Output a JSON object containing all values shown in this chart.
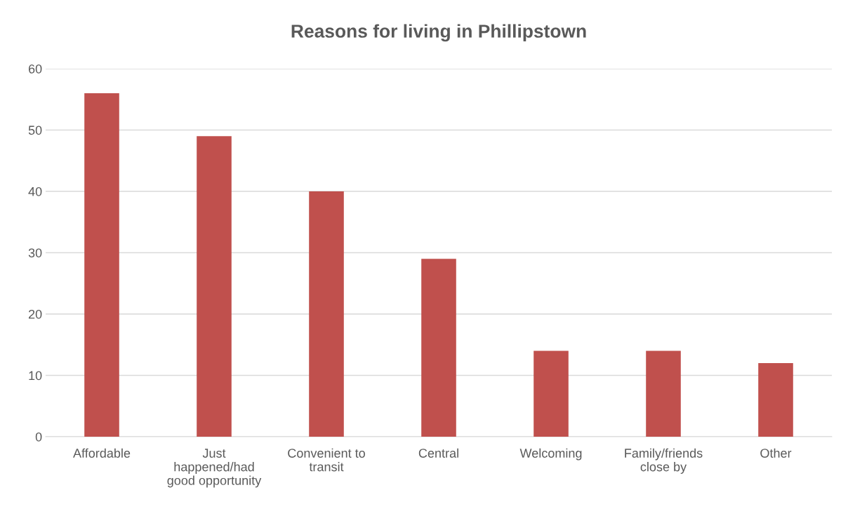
{
  "chart_data": {
    "type": "bar",
    "title": "Reasons for living in Phillipstown",
    "categories": [
      "Affordable",
      "Just\nhappened/had\ngood opportunity",
      "Convenient to\ntransit",
      "Central",
      "Welcoming",
      "Family/friends\nclose by",
      "Other"
    ],
    "values": [
      56,
      49,
      40,
      29,
      14,
      14,
      12
    ],
    "color": "#c0504d",
    "ylim": [
      0,
      60
    ],
    "yticks": [
      0,
      10,
      20,
      30,
      40,
      50,
      60
    ],
    "grid": "y",
    "legend": false
  }
}
